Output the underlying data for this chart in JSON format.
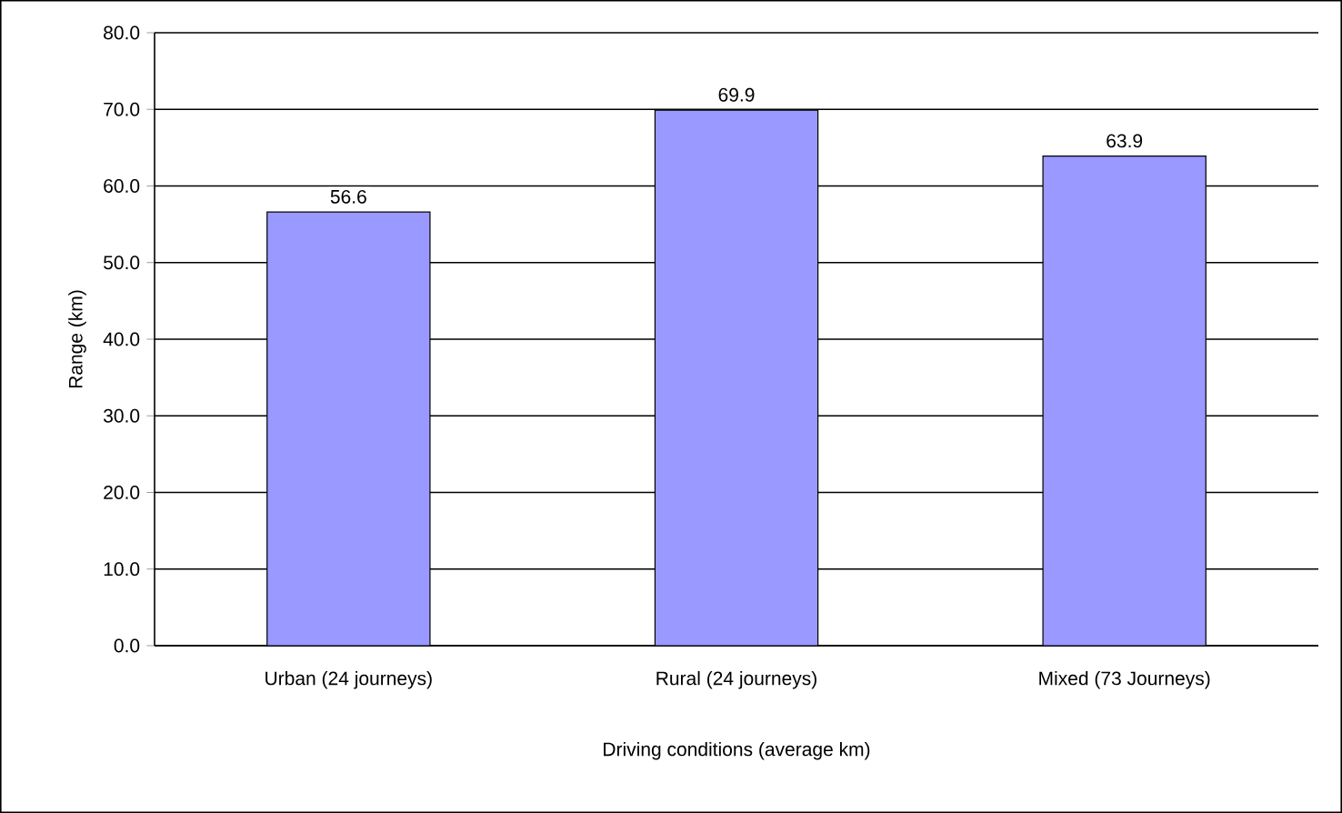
{
  "chart_data": {
    "type": "bar",
    "xlabel": "Driving conditions (average km)",
    "ylabel": "Range (km)",
    "categories": [
      "Urban (24 journeys)",
      "Rural (24 journeys)",
      "Mixed (73 Journeys)"
    ],
    "values": [
      56.6,
      69.9,
      63.9
    ],
    "color": "#9999ff",
    "data_labels": true,
    "grid": "y",
    "ylim": [
      0,
      80
    ],
    "yticks": [
      {
        "value": 0,
        "label": "0.0"
      },
      {
        "value": 10,
        "label": "10.0"
      },
      {
        "value": 20,
        "label": "20.0"
      },
      {
        "value": 30,
        "label": "30.0"
      },
      {
        "value": 40,
        "label": "40.0"
      },
      {
        "value": 50,
        "label": "50.0"
      },
      {
        "value": 60,
        "label": "60.0"
      },
      {
        "value": 70,
        "label": "70.0"
      },
      {
        "value": 80,
        "label": "80.0"
      }
    ]
  }
}
